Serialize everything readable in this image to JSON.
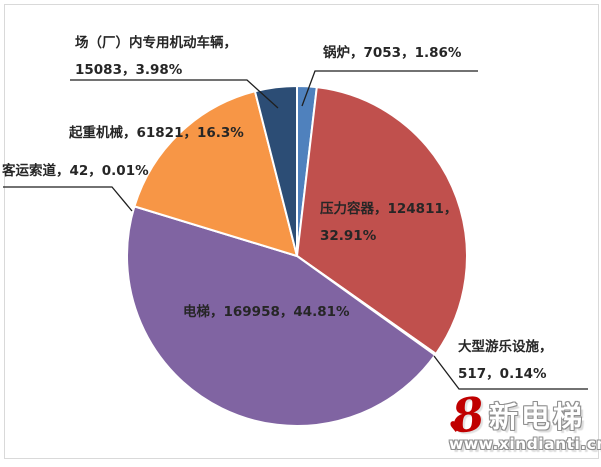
{
  "chart_data": {
    "type": "pie",
    "title": "",
    "categories": [
      "锅炉",
      "压力容器",
      "大型游乐设施",
      "电梯",
      "客运索道",
      "起重机械",
      "场（厂）内专用机动车辆"
    ],
    "values": [
      7053,
      124811,
      517,
      169958,
      42,
      61821,
      15083
    ],
    "percent_labels": [
      "1.86%",
      "32.91%",
      "0.14%",
      "44.81%",
      "0.01%",
      "16.3%",
      "3.98%"
    ],
    "colors": [
      "#4F81BD",
      "#C0504D",
      "#9BBB59",
      "#8064A2",
      "#4BACC6",
      "#F79646",
      "#2C4D75"
    ],
    "slice_border_color": "#FFFFFF",
    "start_angle_deg": 0,
    "direction": "clockwise",
    "legend_position": "none",
    "label_style": "category-value-percent"
  },
  "labels": {
    "boiler": {
      "lines": [
        "锅炉，7053，1.86%"
      ]
    },
    "pressure_vessel": {
      "lines": [
        "压力容器，124811，",
        "32.91%"
      ]
    },
    "amusement": {
      "lines": [
        "大型游乐设施，",
        "517，0.14%"
      ]
    },
    "elevator": {
      "lines": [
        "电梯，169958，44.81%"
      ]
    },
    "cableway": {
      "lines": [
        "客运索道，42，0.01%"
      ]
    },
    "crane": {
      "lines": [
        "起重机械，61821，16.3%"
      ]
    },
    "factory_vehicle": {
      "lines": [
        "场（厂）内专用机动车辆，",
        "15083，3.98%"
      ]
    }
  },
  "watermark": {
    "logo_glyph": "8",
    "heart_glyph": "♥",
    "brand": "新电梯",
    "url": "www.xindianti.cn",
    "brand_color": "#C00000"
  }
}
